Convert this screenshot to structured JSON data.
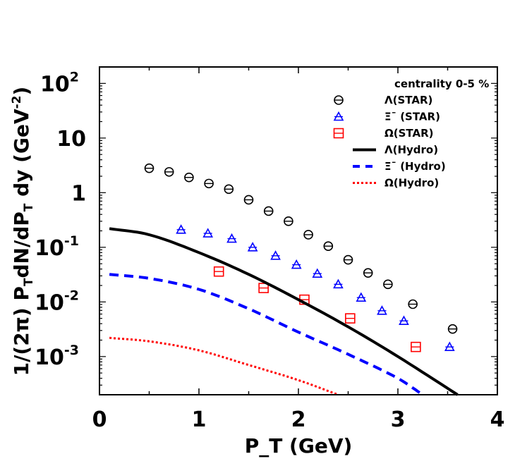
{
  "chart_data": {
    "type": "scatter",
    "title": "",
    "xlabel": "P_T (GeV)",
    "ylabel": "1/(2π) P_TdN/dP_T dy (GeV^-2)",
    "xlim": [
      0,
      4
    ],
    "ylim": [
      0.0002,
      200
    ],
    "yscale": "log",
    "grid": false,
    "legend_placement": "top-right",
    "legend_title": "centrality 0-5 %",
    "x_ticks": [
      "0",
      "1",
      "2",
      "3",
      "4"
    ],
    "y_ticks": [
      {
        "base": "10",
        "exp": "2"
      },
      {
        "base": "10",
        "exp": ""
      },
      {
        "base": "1",
        "exp": ""
      },
      {
        "base": "10",
        "exp": "-1"
      },
      {
        "base": "10",
        "exp": "-2"
      },
      {
        "base": "10",
        "exp": "-3"
      }
    ],
    "series": [
      {
        "name": "Λ(STAR)",
        "kind": "marker",
        "marker": "circle",
        "color": "#000000",
        "x": [
          0.5,
          0.7,
          0.9,
          1.1,
          1.3,
          1.5,
          1.7,
          1.9,
          2.1,
          2.3,
          2.5,
          2.7,
          2.9,
          3.15,
          3.55
        ],
        "y": [
          2.8,
          2.4,
          1.9,
          1.47,
          1.16,
          0.74,
          0.46,
          0.3,
          0.17,
          0.105,
          0.059,
          0.034,
          0.021,
          0.0091,
          0.0032
        ]
      },
      {
        "name": "Ξ¯ (STAR)",
        "kind": "marker",
        "marker": "triangle",
        "color": "#0000ff",
        "x": [
          0.82,
          1.09,
          1.33,
          1.54,
          1.77,
          1.98,
          2.19,
          2.4,
          2.63,
          2.84,
          3.06,
          3.52
        ],
        "y": [
          0.21,
          0.18,
          0.144,
          0.1,
          0.07,
          0.048,
          0.033,
          0.021,
          0.012,
          0.0069,
          0.0045,
          0.0015
        ]
      },
      {
        "name": "Ω(STAR)",
        "kind": "marker",
        "marker": "square",
        "color": "#ff0000",
        "x": [
          1.2,
          1.65,
          2.06,
          2.52,
          3.18
        ],
        "y": [
          0.036,
          0.018,
          0.011,
          0.005,
          0.0015
        ]
      },
      {
        "name": "Λ(Hydro)",
        "kind": "line",
        "dash": "solid",
        "color": "#000000",
        "x": [
          0.1,
          0.5,
          1.0,
          1.5,
          2.0,
          2.5,
          3.0,
          3.6
        ],
        "y": [
          0.22,
          0.17,
          0.08,
          0.032,
          0.011,
          0.0035,
          0.001,
          0.0002
        ]
      },
      {
        "name": "Ξ¯ (Hydro)",
        "kind": "line",
        "dash": "dashed",
        "color": "#0000ff",
        "x": [
          0.1,
          0.5,
          1.0,
          1.5,
          2.0,
          2.5,
          3.0,
          3.25
        ],
        "y": [
          0.032,
          0.027,
          0.017,
          0.0075,
          0.0028,
          0.0011,
          0.0004,
          0.0002
        ]
      },
      {
        "name": "Ω(Hydro)",
        "kind": "line",
        "dash": "dotted",
        "color": "#ff0000",
        "x": [
          0.1,
          0.5,
          1.0,
          1.5,
          2.0,
          2.4
        ],
        "y": [
          0.0022,
          0.0019,
          0.0013,
          0.0007,
          0.00037,
          0.0002
        ]
      }
    ]
  }
}
